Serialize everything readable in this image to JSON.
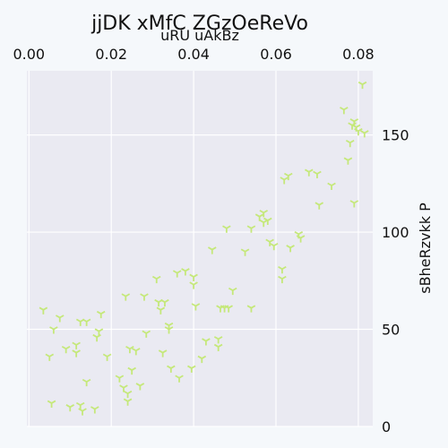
{
  "chart_data": {
    "type": "scatter",
    "title": "jjDK xMfC  ZGzOeReVo",
    "xlabel": "uRU uAkBz",
    "ylabel": "sBheRzvkk P",
    "x_axis_position": "top",
    "y_axis_position": "right",
    "xlim": [
      -0.0005,
      0.0835
    ],
    "ylim": [
      0,
      183
    ],
    "xticks": [
      0.0,
      0.02,
      0.04,
      0.06,
      0.08
    ],
    "xtick_labels": [
      "0.00",
      "0.02",
      "0.04",
      "0.06",
      "0.08"
    ],
    "yticks": [
      0,
      50,
      100,
      150
    ],
    "ytick_labels": [
      "0",
      "50",
      "100",
      "150"
    ],
    "grid": true,
    "marker": "tri_down",
    "colors": {
      "marker": "#c5e87a",
      "plot_bg": "#eaeaf2",
      "page_bg": "#f5f8fb",
      "grid": "#ffffff"
    },
    "points": [
      {
        "x": 0.0035,
        "y": 60
      },
      {
        "x": 0.005,
        "y": 36
      },
      {
        "x": 0.0055,
        "y": 12
      },
      {
        "x": 0.006,
        "y": 50
      },
      {
        "x": 0.0075,
        "y": 56
      },
      {
        "x": 0.009,
        "y": 40
      },
      {
        "x": 0.01,
        "y": 10
      },
      {
        "x": 0.0115,
        "y": 42
      },
      {
        "x": 0.0115,
        "y": 38
      },
      {
        "x": 0.0125,
        "y": 54
      },
      {
        "x": 0.0125,
        "y": 11
      },
      {
        "x": 0.013,
        "y": 8
      },
      {
        "x": 0.014,
        "y": 54
      },
      {
        "x": 0.014,
        "y": 23
      },
      {
        "x": 0.016,
        "y": 9
      },
      {
        "x": 0.0165,
        "y": 46
      },
      {
        "x": 0.017,
        "y": 49
      },
      {
        "x": 0.0175,
        "y": 58
      },
      {
        "x": 0.019,
        "y": 36
      },
      {
        "x": 0.022,
        "y": 25
      },
      {
        "x": 0.023,
        "y": 20
      },
      {
        "x": 0.0235,
        "y": 67
      },
      {
        "x": 0.024,
        "y": 13
      },
      {
        "x": 0.024,
        "y": 17
      },
      {
        "x": 0.0245,
        "y": 40
      },
      {
        "x": 0.025,
        "y": 29
      },
      {
        "x": 0.026,
        "y": 39
      },
      {
        "x": 0.027,
        "y": 21
      },
      {
        "x": 0.028,
        "y": 67
      },
      {
        "x": 0.0285,
        "y": 48
      },
      {
        "x": 0.031,
        "y": 76
      },
      {
        "x": 0.0315,
        "y": 64
      },
      {
        "x": 0.032,
        "y": 60
      },
      {
        "x": 0.0325,
        "y": 38
      },
      {
        "x": 0.033,
        "y": 64
      },
      {
        "x": 0.034,
        "y": 52
      },
      {
        "x": 0.034,
        "y": 50
      },
      {
        "x": 0.0345,
        "y": 30
      },
      {
        "x": 0.036,
        "y": 79
      },
      {
        "x": 0.0365,
        "y": 25
      },
      {
        "x": 0.038,
        "y": 80
      },
      {
        "x": 0.0395,
        "y": 30
      },
      {
        "x": 0.04,
        "y": 77
      },
      {
        "x": 0.04,
        "y": 73
      },
      {
        "x": 0.0405,
        "y": 62
      },
      {
        "x": 0.042,
        "y": 35
      },
      {
        "x": 0.043,
        "y": 44
      },
      {
        "x": 0.0445,
        "y": 91
      },
      {
        "x": 0.046,
        "y": 45
      },
      {
        "x": 0.046,
        "y": 41
      },
      {
        "x": 0.0465,
        "y": 61
      },
      {
        "x": 0.0475,
        "y": 61
      },
      {
        "x": 0.048,
        "y": 102
      },
      {
        "x": 0.0485,
        "y": 61
      },
      {
        "x": 0.0495,
        "y": 70
      },
      {
        "x": 0.0525,
        "y": 90
      },
      {
        "x": 0.054,
        "y": 61
      },
      {
        "x": 0.054,
        "y": 102
      },
      {
        "x": 0.056,
        "y": 108
      },
      {
        "x": 0.057,
        "y": 110
      },
      {
        "x": 0.057,
        "y": 105
      },
      {
        "x": 0.058,
        "y": 106
      },
      {
        "x": 0.0585,
        "y": 95
      },
      {
        "x": 0.0595,
        "y": 93
      },
      {
        "x": 0.0615,
        "y": 81
      },
      {
        "x": 0.0615,
        "y": 76
      },
      {
        "x": 0.062,
        "y": 127
      },
      {
        "x": 0.063,
        "y": 129
      },
      {
        "x": 0.0635,
        "y": 92
      },
      {
        "x": 0.0655,
        "y": 99
      },
      {
        "x": 0.066,
        "y": 97
      },
      {
        "x": 0.068,
        "y": 131
      },
      {
        "x": 0.07,
        "y": 130
      },
      {
        "x": 0.0705,
        "y": 114
      },
      {
        "x": 0.0735,
        "y": 124
      },
      {
        "x": 0.0765,
        "y": 163
      },
      {
        "x": 0.0775,
        "y": 137
      },
      {
        "x": 0.078,
        "y": 146
      },
      {
        "x": 0.0785,
        "y": 155
      },
      {
        "x": 0.079,
        "y": 157
      },
      {
        "x": 0.079,
        "y": 115
      },
      {
        "x": 0.0795,
        "y": 154
      },
      {
        "x": 0.08,
        "y": 152
      },
      {
        "x": 0.081,
        "y": 176
      },
      {
        "x": 0.0815,
        "y": 151
      }
    ]
  }
}
